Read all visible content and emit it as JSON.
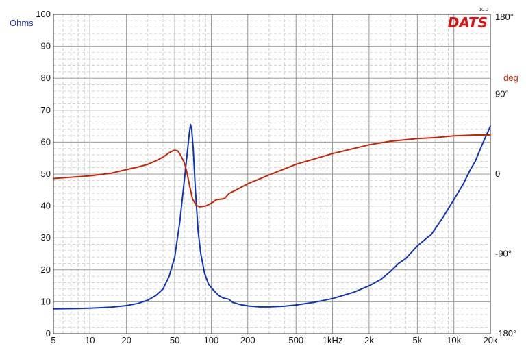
{
  "chart_data": {
    "type": "line",
    "title": "",
    "xlabel": "",
    "ylabel": "",
    "x_scale": "log",
    "xlim": [
      5,
      20000
    ],
    "ylim_left": [
      0,
      100
    ],
    "ylim_right": [
      -180,
      180
    ],
    "grid": true,
    "left_axis_unit": "Ohms",
    "right_axis_unit": "deg",
    "x_ticks": [
      {
        "value": 5,
        "label": "5"
      },
      {
        "value": 10,
        "label": "10"
      },
      {
        "value": 20,
        "label": "20"
      },
      {
        "value": 50,
        "label": "50"
      },
      {
        "value": 100,
        "label": "100"
      },
      {
        "value": 200,
        "label": "200"
      },
      {
        "value": 500,
        "label": "500"
      },
      {
        "value": 1000,
        "label": "1kHz"
      },
      {
        "value": 2000,
        "label": "2k"
      },
      {
        "value": 5000,
        "label": "5k"
      },
      {
        "value": 10000,
        "label": "10k"
      },
      {
        "value": 20000,
        "label": "20k"
      }
    ],
    "y_ticks_left": [
      {
        "value": 0,
        "label": "0"
      },
      {
        "value": 10,
        "label": "10"
      },
      {
        "value": 20,
        "label": "20"
      },
      {
        "value": 30,
        "label": "30"
      },
      {
        "value": 40,
        "label": "40"
      },
      {
        "value": 50,
        "label": "50"
      },
      {
        "value": 60,
        "label": "60"
      },
      {
        "value": 70,
        "label": "70"
      },
      {
        "value": 80,
        "label": "80"
      },
      {
        "value": 90,
        "label": "90"
      },
      {
        "value": 100,
        "label": "100"
      }
    ],
    "y_ticks_right": [
      {
        "value": 180,
        "label": "180°"
      },
      {
        "value": 90,
        "label": "90°"
      },
      {
        "value": 0,
        "label": "0"
      },
      {
        "value": -90,
        "label": "-90°"
      },
      {
        "value": -180,
        "label": "-180°"
      }
    ],
    "series": [
      {
        "axis": "left",
        "color": "#1133bb",
        "points": [
          [
            5,
            7.8
          ],
          [
            8,
            7.9
          ],
          [
            10,
            8.0
          ],
          [
            15,
            8.3
          ],
          [
            20,
            8.8
          ],
          [
            25,
            9.5
          ],
          [
            30,
            10.5
          ],
          [
            35,
            12.0
          ],
          [
            40,
            14.0
          ],
          [
            45,
            18.0
          ],
          [
            50,
            24.0
          ],
          [
            55,
            35.0
          ],
          [
            60,
            48.0
          ],
          [
            64,
            58.0
          ],
          [
            66,
            63.0
          ],
          [
            67.5,
            65.5
          ],
          [
            69,
            64.0
          ],
          [
            71,
            58.0
          ],
          [
            74,
            45.0
          ],
          [
            78,
            32.0
          ],
          [
            82,
            25.0
          ],
          [
            88,
            19.0
          ],
          [
            95,
            15.5
          ],
          [
            105,
            13.5
          ],
          [
            115,
            12.0
          ],
          [
            125,
            11.2
          ],
          [
            140,
            10.8
          ],
          [
            150,
            9.8
          ],
          [
            170,
            9.2
          ],
          [
            200,
            8.7
          ],
          [
            250,
            8.4
          ],
          [
            300,
            8.4
          ],
          [
            400,
            8.6
          ],
          [
            500,
            9.0
          ],
          [
            700,
            9.8
          ],
          [
            1000,
            11.0
          ],
          [
            1500,
            13.0
          ],
          [
            2000,
            15.0
          ],
          [
            2500,
            17.0
          ],
          [
            3000,
            19.5
          ],
          [
            3500,
            22.0
          ],
          [
            4000,
            23.5
          ],
          [
            5000,
            27.5
          ],
          [
            6000,
            30.0
          ],
          [
            6500,
            31.0
          ],
          [
            8000,
            36.0
          ],
          [
            10000,
            42.0
          ],
          [
            12000,
            47.0
          ],
          [
            13500,
            51.0
          ],
          [
            15000,
            54.0
          ],
          [
            17000,
            59.0
          ],
          [
            20000,
            65.0
          ]
        ]
      },
      {
        "axis": "right",
        "color": "#cc2200",
        "points": [
          [
            5,
            -5
          ],
          [
            10,
            -2
          ],
          [
            15,
            1
          ],
          [
            20,
            5
          ],
          [
            25,
            8
          ],
          [
            30,
            11
          ],
          [
            35,
            15
          ],
          [
            40,
            19
          ],
          [
            45,
            24
          ],
          [
            48,
            26
          ],
          [
            50,
            27
          ],
          [
            53,
            26
          ],
          [
            56,
            21
          ],
          [
            60,
            13
          ],
          [
            63,
            2
          ],
          [
            66,
            -12
          ],
          [
            70,
            -28
          ],
          [
            75,
            -35
          ],
          [
            80,
            -37
          ],
          [
            90,
            -36
          ],
          [
            100,
            -33
          ],
          [
            110,
            -29
          ],
          [
            125,
            -28
          ],
          [
            130,
            -27
          ],
          [
            140,
            -22
          ],
          [
            160,
            -18
          ],
          [
            200,
            -11
          ],
          [
            300,
            -1
          ],
          [
            500,
            11
          ],
          [
            1000,
            23
          ],
          [
            2000,
            33
          ],
          [
            3000,
            37
          ],
          [
            5000,
            40
          ],
          [
            7000,
            41
          ],
          [
            10000,
            43
          ],
          [
            15000,
            44
          ],
          [
            20000,
            44
          ]
        ]
      }
    ]
  },
  "logo": {
    "text": "DATS",
    "version": "10.0"
  }
}
